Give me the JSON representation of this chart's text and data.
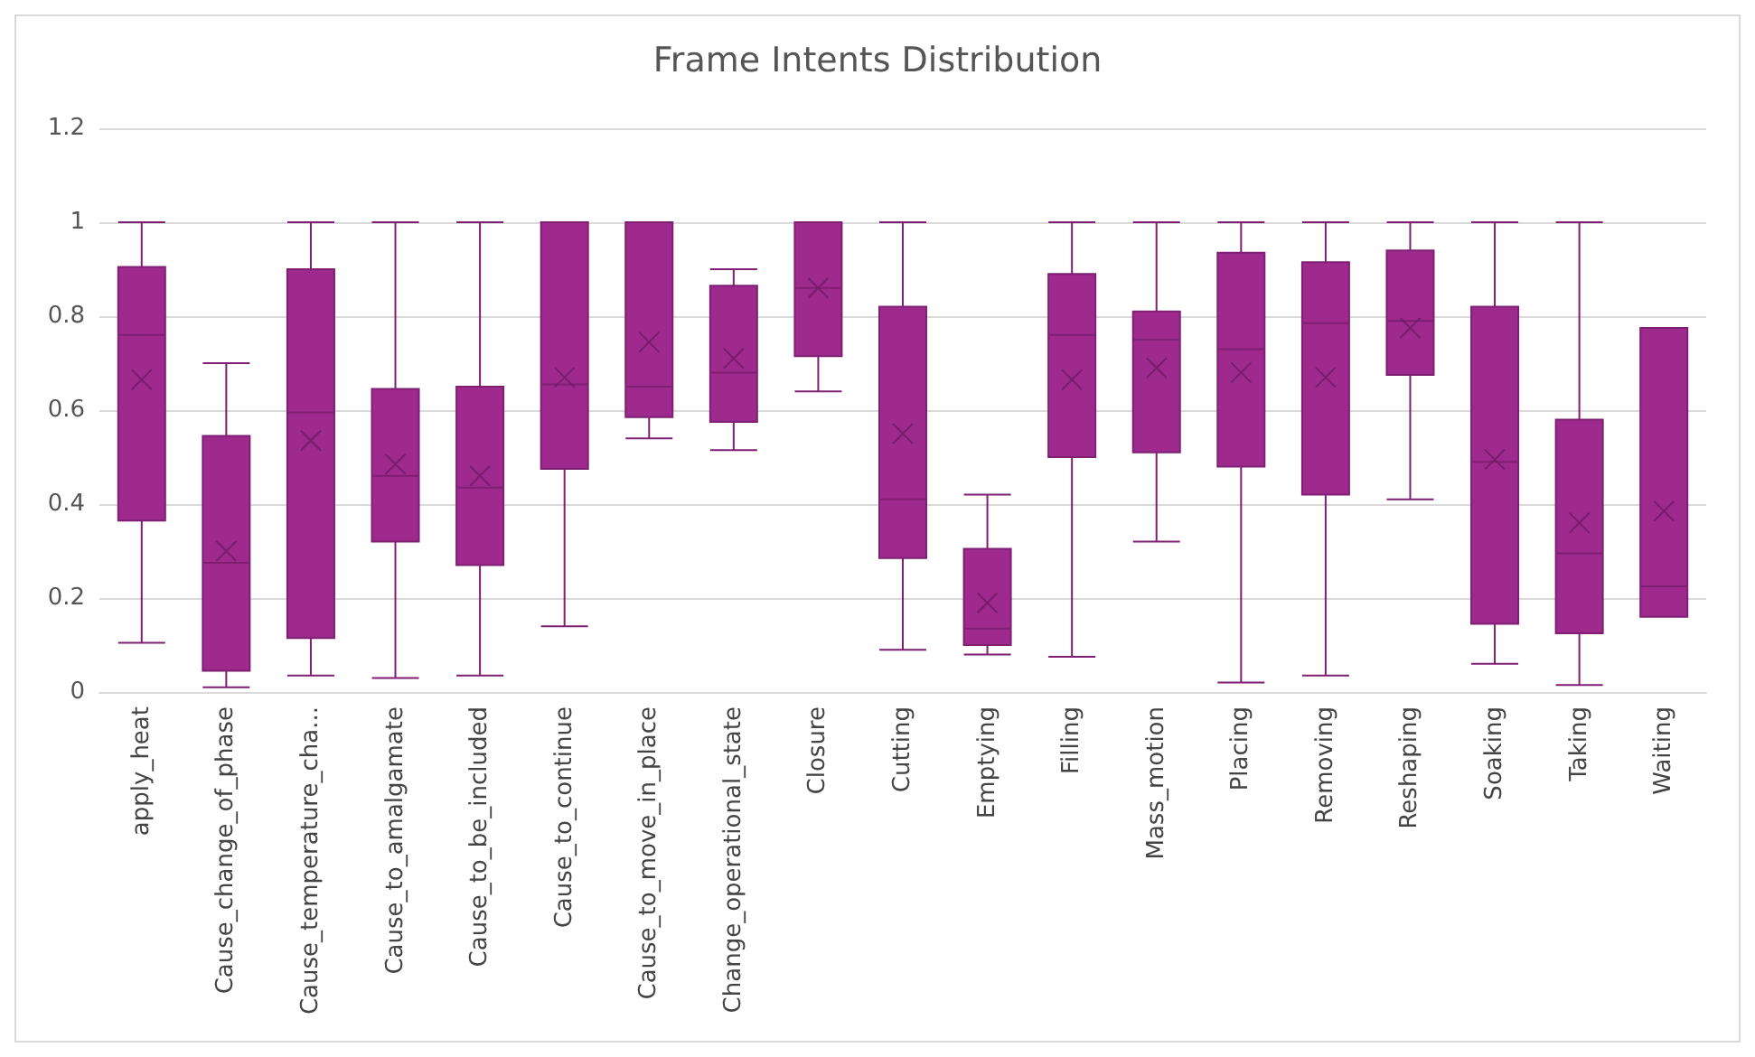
{
  "chart_data": {
    "type": "box",
    "title": "Frame Intents Distribution",
    "color": "#9e2a8e",
    "grid": "y",
    "ylim": [
      0,
      1.2
    ],
    "yticks": [
      0,
      0.2,
      0.4,
      0.6,
      0.8,
      1,
      1.2
    ],
    "categories": [
      "apply_heat",
      "Cause_change_of_phase",
      "Cause_temperature_cha...",
      "Cause_to_amalgamate",
      "Cause_to_be_included",
      "Cause_to_continue",
      "Cause_to_move_in_place",
      "Change_operational_state",
      "Closure",
      "Cutting",
      "Emptying",
      "Filling",
      "Mass_motion",
      "Placing",
      "Removing",
      "Reshaping",
      "Soaking",
      "Taking",
      "Waiting"
    ],
    "boxes": [
      {
        "low": 0.105,
        "q1": 0.365,
        "median": 0.76,
        "q3": 0.905,
        "high": 1,
        "mean": 0.665
      },
      {
        "low": 0.01,
        "q1": 0.045,
        "median": 0.275,
        "q3": 0.545,
        "high": 0.7,
        "mean": 0.3
      },
      {
        "low": 0.035,
        "q1": 0.115,
        "median": 0.595,
        "q3": 0.9,
        "high": 1,
        "mean": 0.535
      },
      {
        "low": 0.03,
        "q1": 0.32,
        "median": 0.46,
        "q3": 0.645,
        "high": 1,
        "mean": 0.485
      },
      {
        "low": 0.035,
        "q1": 0.27,
        "median": 0.435,
        "q3": 0.65,
        "high": 1,
        "mean": 0.46
      },
      {
        "low": 0.14,
        "q1": 0.475,
        "median": 0.655,
        "q3": 1,
        "high": 1,
        "mean": 0.67
      },
      {
        "low": 0.54,
        "q1": 0.585,
        "median": 0.65,
        "q3": 1,
        "high": 1,
        "mean": 0.745
      },
      {
        "low": 0.515,
        "q1": 0.575,
        "median": 0.68,
        "q3": 0.865,
        "high": 0.9,
        "mean": 0.71
      },
      {
        "low": 0.64,
        "q1": 0.715,
        "median": 0.86,
        "q3": 1,
        "high": 1,
        "mean": 0.86
      },
      {
        "low": 0.09,
        "q1": 0.285,
        "median": 0.41,
        "q3": 0.82,
        "high": 1,
        "mean": 0.55
      },
      {
        "low": 0.08,
        "q1": 0.1,
        "median": 0.135,
        "q3": 0.305,
        "high": 0.42,
        "mean": 0.19
      },
      {
        "low": 0.075,
        "q1": 0.5,
        "median": 0.76,
        "q3": 0.89,
        "high": 1,
        "mean": 0.665
      },
      {
        "low": 0.32,
        "q1": 0.51,
        "median": 0.75,
        "q3": 0.81,
        "high": 1,
        "mean": 0.69
      },
      {
        "low": 0.02,
        "q1": 0.48,
        "median": 0.73,
        "q3": 0.935,
        "high": 1,
        "mean": 0.68
      },
      {
        "low": 0.035,
        "q1": 0.42,
        "median": 0.785,
        "q3": 0.915,
        "high": 1,
        "mean": 0.67
      },
      {
        "low": 0.41,
        "q1": 0.675,
        "median": 0.79,
        "q3": 0.94,
        "high": 1,
        "mean": 0.775
      },
      {
        "low": 0.06,
        "q1": 0.145,
        "median": 0.49,
        "q3": 0.82,
        "high": 1,
        "mean": 0.495
      },
      {
        "low": 0.015,
        "q1": 0.125,
        "median": 0.295,
        "q3": 0.58,
        "high": 1,
        "mean": 0.36
      },
      {
        "low": 0.16,
        "q1": 0.16,
        "median": 0.225,
        "q3": 0.775,
        "high": 0.775,
        "mean": 0.385
      }
    ]
  }
}
